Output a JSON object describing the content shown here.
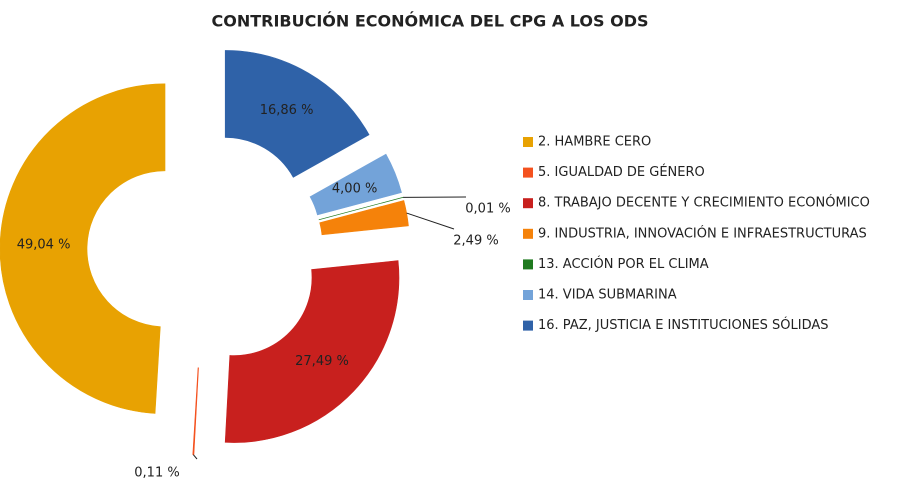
{
  "chart_data": {
    "type": "donut",
    "title": "CONTRIBUCIÓN ECONÓMICA DEL CPG A LOS ODS",
    "categories": [
      "2. HAMBRE CERO",
      "5. IGUALDAD DE GÉNERO",
      "8. TRABAJO DECENTE Y CRECIMIENTO ECONÓMICO",
      "9. INDUSTRIA, INNOVACIÓN E INFRAESTRUCTURAS",
      "13. ACCIÓN POR EL CLIMA",
      "14. VIDA SUBMARINA",
      "16. PAZ, JUSTICIA E INSTITUCIONES SÓLIDAS"
    ],
    "values": [
      49.04,
      0.11,
      27.49,
      2.49,
      0.01,
      4.0,
      16.86
    ],
    "value_labels": [
      "49,04 %",
      "0,11 %",
      "27,49 %",
      "2,49 %",
      "0,01 %",
      "4,00 %",
      "16,86 %"
    ],
    "colors": [
      "#E8A202",
      "#F4511E",
      "#C8201E",
      "#F5820A",
      "#1F7A1F",
      "#73A3D9",
      "#2F62A8"
    ],
    "legend": "right"
  }
}
